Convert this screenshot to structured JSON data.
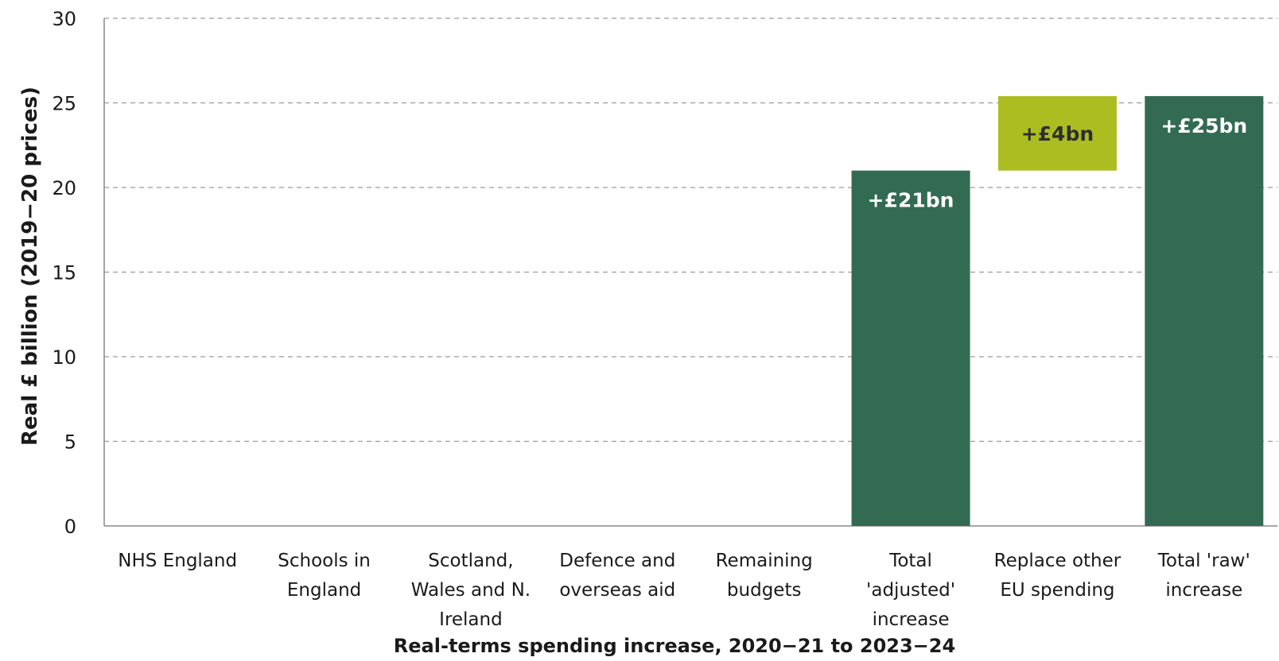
{
  "chart_data": {
    "type": "bar",
    "xlabel": "Real-terms spending increase, 2020−21 to 2023−24",
    "ylabel": "Real £ billion  (2019−20 prices)",
    "ylim": [
      0,
      30
    ],
    "yticks": [
      0,
      5,
      10,
      15,
      20,
      25,
      30
    ],
    "grid": true,
    "stacked_waterfall": true,
    "categories": [
      [
        "NHS England"
      ],
      [
        "Schools in",
        "England"
      ],
      [
        "Scotland,",
        "Wales and N.",
        "Ireland"
      ],
      [
        "Defence and",
        "overseas aid"
      ],
      [
        "Remaining",
        "budgets"
      ],
      [
        "Total",
        "'adjusted'",
        "increase"
      ],
      [
        "Replace other",
        "EU spending"
      ],
      [
        "Total 'raw'",
        "increase"
      ]
    ],
    "bars": [
      {
        "category_index": 5,
        "base": 0,
        "value": 21,
        "label": "+£21bn",
        "color": "#336b52",
        "label_color": "#ffffff",
        "label_pos": "top-inside"
      },
      {
        "category_index": 6,
        "base": 21,
        "value": 4.4,
        "label": "+£4bn",
        "color": "#acbd22",
        "label_color": "#2e2e2e",
        "label_pos": "center"
      },
      {
        "category_index": 7,
        "base": 0,
        "value": 25.4,
        "label": "+£25bn",
        "color": "#336b52",
        "label_color": "#ffffff",
        "label_pos": "top-inside"
      }
    ]
  }
}
